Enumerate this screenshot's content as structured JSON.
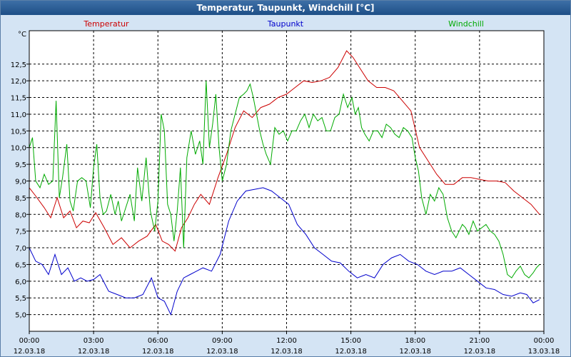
{
  "colors": {
    "temperatur": "#cc0000",
    "taupunkt": "#0000cc",
    "windchill": "#00aa00",
    "grid": "#000000",
    "title_bg": "#2a5a95",
    "chart_bg": "#ffffff"
  },
  "chart_data": {
    "type": "line",
    "title": "Temperatur, Taupunkt, Windchill [°C]",
    "ylabel": "°C",
    "ylim": [
      4.5,
      13.5
    ],
    "yticks": [
      5.0,
      5.5,
      6.0,
      6.5,
      7.0,
      7.5,
      8.0,
      8.5,
      9.0,
      9.5,
      10.0,
      10.5,
      11.0,
      11.5,
      12.0,
      12.5
    ],
    "ytick_labels": [
      "5,0",
      "5,5",
      "6,0",
      "6,5",
      "7,0",
      "7,5",
      "8,0",
      "8,5",
      "9,0",
      "9,5",
      "10,0",
      "10,5",
      "11,0",
      "11,5",
      "12,0",
      "12,5"
    ],
    "xlim": [
      0,
      24
    ],
    "xticks": [
      0,
      3,
      6,
      9,
      12,
      15,
      18,
      21,
      24
    ],
    "xtick_time": [
      "00:00",
      "03:00",
      "06:00",
      "09:00",
      "12:00",
      "15:00",
      "18:00",
      "21:00",
      "00:00"
    ],
    "xtick_date": [
      "12.03.18",
      "12.03.18",
      "12.03.18",
      "12.03.18",
      "12.03.18",
      "12.03.18",
      "12.03.18",
      "12.03.18",
      "13.03.18"
    ],
    "grid": true,
    "series": [
      {
        "name": "Temperatur",
        "x": [
          0,
          0.3,
          0.7,
          1.0,
          1.3,
          1.6,
          1.9,
          2.2,
          2.5,
          2.8,
          3.1,
          3.5,
          3.9,
          4.3,
          4.7,
          5.1,
          5.5,
          5.9,
          6.2,
          6.5,
          6.8,
          7.1,
          7.4,
          7.7,
          8.0,
          8.4,
          8.8,
          9.2,
          9.6,
          10.0,
          10.4,
          10.8,
          11.2,
          11.6,
          12.0,
          12.4,
          12.8,
          13.2,
          13.6,
          14.0,
          14.4,
          14.8,
          15.1,
          15.4,
          15.8,
          16.2,
          16.6,
          17.0,
          17.4,
          17.8,
          18.2,
          18.6,
          19.0,
          19.4,
          19.8,
          20.2,
          20.6,
          21.0,
          21.4,
          21.8,
          22.2,
          22.6,
          23.0,
          23.4,
          23.8
        ],
        "values": [
          8.8,
          8.55,
          8.2,
          7.9,
          8.5,
          7.9,
          8.1,
          7.6,
          7.8,
          7.75,
          8.05,
          7.6,
          7.1,
          7.3,
          7.0,
          7.2,
          7.35,
          7.7,
          7.2,
          7.1,
          6.9,
          7.6,
          7.9,
          8.3,
          8.6,
          8.3,
          9.1,
          9.8,
          10.6,
          11.1,
          10.9,
          11.2,
          11.3,
          11.5,
          11.6,
          11.8,
          12.0,
          11.95,
          12.0,
          12.1,
          12.4,
          12.9,
          12.7,
          12.4,
          12.0,
          11.8,
          11.8,
          11.7,
          11.4,
          11.1,
          10.0,
          9.6,
          9.2,
          8.9,
          8.9,
          9.1,
          9.1,
          9.05,
          9.0,
          9.0,
          8.95,
          8.7,
          8.5,
          8.3,
          8.0
        ]
      },
      {
        "name": "Taupunkt",
        "x": [
          0,
          0.3,
          0.6,
          0.9,
          1.2,
          1.5,
          1.8,
          2.1,
          2.4,
          2.7,
          3.0,
          3.3,
          3.7,
          4.1,
          4.5,
          4.9,
          5.3,
          5.7,
          6.0,
          6.3,
          6.6,
          6.9,
          7.2,
          7.5,
          7.8,
          8.1,
          8.5,
          8.9,
          9.3,
          9.7,
          10.1,
          10.5,
          10.9,
          11.3,
          11.7,
          12.1,
          12.5,
          12.9,
          13.3,
          13.7,
          14.1,
          14.5,
          14.9,
          15.3,
          15.7,
          16.1,
          16.5,
          16.9,
          17.3,
          17.7,
          18.1,
          18.5,
          18.9,
          19.3,
          19.7,
          20.1,
          20.5,
          20.9,
          21.3,
          21.7,
          22.1,
          22.5,
          22.9,
          23.2,
          23.5,
          23.8
        ],
        "values": [
          7.0,
          6.6,
          6.5,
          6.2,
          6.8,
          6.2,
          6.4,
          6.0,
          6.1,
          6.0,
          6.05,
          6.2,
          5.7,
          5.6,
          5.5,
          5.5,
          5.6,
          6.1,
          5.5,
          5.4,
          5.0,
          5.7,
          6.1,
          6.2,
          6.3,
          6.4,
          6.3,
          6.8,
          7.8,
          8.4,
          8.7,
          8.75,
          8.8,
          8.7,
          8.5,
          8.3,
          7.7,
          7.4,
          7.0,
          6.8,
          6.6,
          6.55,
          6.3,
          6.1,
          6.2,
          6.1,
          6.5,
          6.7,
          6.8,
          6.6,
          6.5,
          6.3,
          6.2,
          6.3,
          6.3,
          6.4,
          6.2,
          6.0,
          5.8,
          5.75,
          5.6,
          5.55,
          5.65,
          5.6,
          5.35,
          5.45
        ]
      },
      {
        "name": "Windchill",
        "x": [
          0,
          0.15,
          0.3,
          0.5,
          0.7,
          0.9,
          1.1,
          1.25,
          1.4,
          1.55,
          1.75,
          1.9,
          2.05,
          2.25,
          2.45,
          2.65,
          2.85,
          3.0,
          3.15,
          3.3,
          3.45,
          3.6,
          3.8,
          4.0,
          4.15,
          4.3,
          4.5,
          4.7,
          4.9,
          5.05,
          5.25,
          5.45,
          5.65,
          5.85,
          6.0,
          6.15,
          6.3,
          6.45,
          6.6,
          6.75,
          6.9,
          7.05,
          7.2,
          7.35,
          7.55,
          7.75,
          7.95,
          8.1,
          8.25,
          8.4,
          8.55,
          8.7,
          8.85,
          9.0,
          9.2,
          9.4,
          9.6,
          9.8,
          10.0,
          10.15,
          10.3,
          10.45,
          10.6,
          10.75,
          10.9,
          11.05,
          11.25,
          11.45,
          11.65,
          11.85,
          12.05,
          12.25,
          12.45,
          12.65,
          12.85,
          13.05,
          13.25,
          13.45,
          13.65,
          13.85,
          14.05,
          14.25,
          14.45,
          14.65,
          14.85,
          15.05,
          15.2,
          15.35,
          15.5,
          15.65,
          15.85,
          16.05,
          16.25,
          16.45,
          16.65,
          16.85,
          17.05,
          17.25,
          17.45,
          17.65,
          17.85,
          18.0,
          18.15,
          18.3,
          18.5,
          18.7,
          18.9,
          19.1,
          19.3,
          19.5,
          19.7,
          19.9,
          20.05,
          20.2,
          20.35,
          20.5,
          20.7,
          20.9,
          21.1,
          21.3,
          21.5,
          21.7,
          21.9,
          22.1,
          22.3,
          22.5,
          22.7,
          22.9,
          23.1,
          23.3,
          23.5,
          23.65,
          23.8
        ],
        "values": [
          10.0,
          10.3,
          9.0,
          8.8,
          9.2,
          8.9,
          9.0,
          11.4,
          8.5,
          9.1,
          10.1,
          8.4,
          8.1,
          9.0,
          9.1,
          9.0,
          8.2,
          9.4,
          10.1,
          8.5,
          8.0,
          8.1,
          8.6,
          8.0,
          8.4,
          7.8,
          8.2,
          8.6,
          7.8,
          9.4,
          8.4,
          9.7,
          8.1,
          7.5,
          8.4,
          11.0,
          10.5,
          8.3,
          8.0,
          7.2,
          8.1,
          9.4,
          7.0,
          9.7,
          10.5,
          9.8,
          10.2,
          9.5,
          12.0,
          10.0,
          10.7,
          11.6,
          10.0,
          9.0,
          9.5,
          10.5,
          11.0,
          11.5,
          11.6,
          11.7,
          11.9,
          11.5,
          11.0,
          10.5,
          10.1,
          9.8,
          9.5,
          10.6,
          10.4,
          10.5,
          10.2,
          10.5,
          10.5,
          10.8,
          11.0,
          10.6,
          11.0,
          10.8,
          10.9,
          10.5,
          10.5,
          10.9,
          11.0,
          11.6,
          11.2,
          11.5,
          11.0,
          11.2,
          10.6,
          10.4,
          10.2,
          10.5,
          10.5,
          10.3,
          10.7,
          10.6,
          10.4,
          10.3,
          10.6,
          10.5,
          10.3,
          9.7,
          9.3,
          8.5,
          8.0,
          8.6,
          8.4,
          8.8,
          8.6,
          7.9,
          7.5,
          7.3,
          7.5,
          7.7,
          7.6,
          7.4,
          7.8,
          7.5,
          7.6,
          7.7,
          7.5,
          7.4,
          7.2,
          6.8,
          6.2,
          6.1,
          6.3,
          6.45,
          6.2,
          6.1,
          6.25,
          6.4,
          6.5
        ]
      }
    ]
  }
}
